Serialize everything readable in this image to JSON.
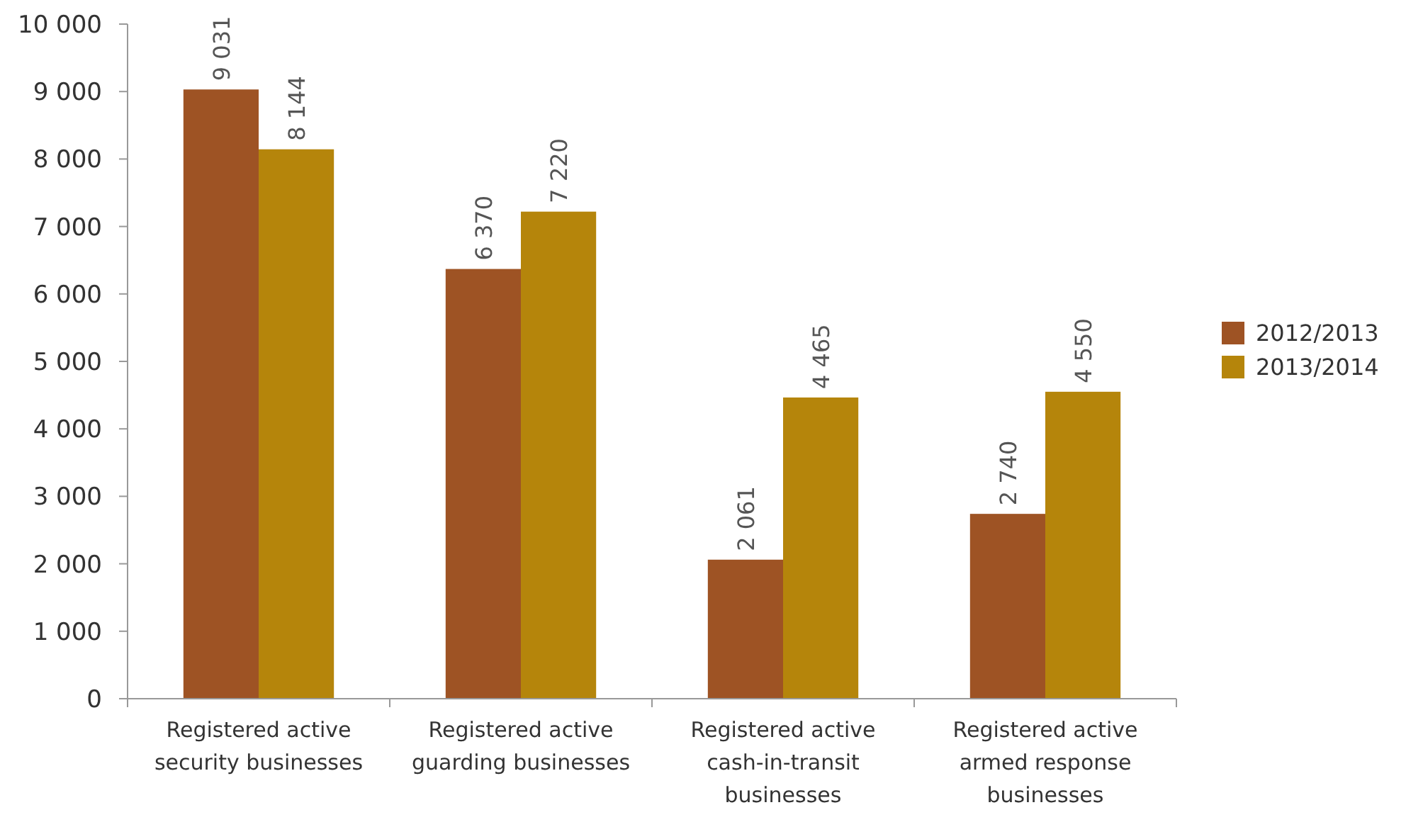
{
  "chart_data": {
    "type": "bar",
    "categories": [
      "Registered active security businesses",
      "Registered active guarding businesses",
      "Registered active cash-in-transit businesses",
      "Registered active armed response businesses"
    ],
    "series": [
      {
        "name": "2012/2013",
        "color": "#9e5324",
        "values": [
          9031,
          6370,
          2061,
          2740
        ]
      },
      {
        "name": "2013/2014",
        "color": "#b5850b",
        "values": [
          8144,
          7220,
          4465,
          4550
        ]
      }
    ],
    "ylim": [
      0,
      10000
    ],
    "yticks": [
      {
        "value": 0,
        "label": "0"
      },
      {
        "value": 1000,
        "label": "1 000"
      },
      {
        "value": 2000,
        "label": "2 000"
      },
      {
        "value": 3000,
        "label": "3 000"
      },
      {
        "value": 4000,
        "label": "4 000"
      },
      {
        "value": 5000,
        "label": "5 000"
      },
      {
        "value": 6000,
        "label": "6 000"
      },
      {
        "value": 7000,
        "label": "7 000"
      },
      {
        "value": 8000,
        "label": "8 000"
      },
      {
        "value": 9000,
        "label": "9 000"
      },
      {
        "value": 10000,
        "label": "10 000"
      }
    ],
    "data_labels": true,
    "legend": "right",
    "grid": false
  }
}
